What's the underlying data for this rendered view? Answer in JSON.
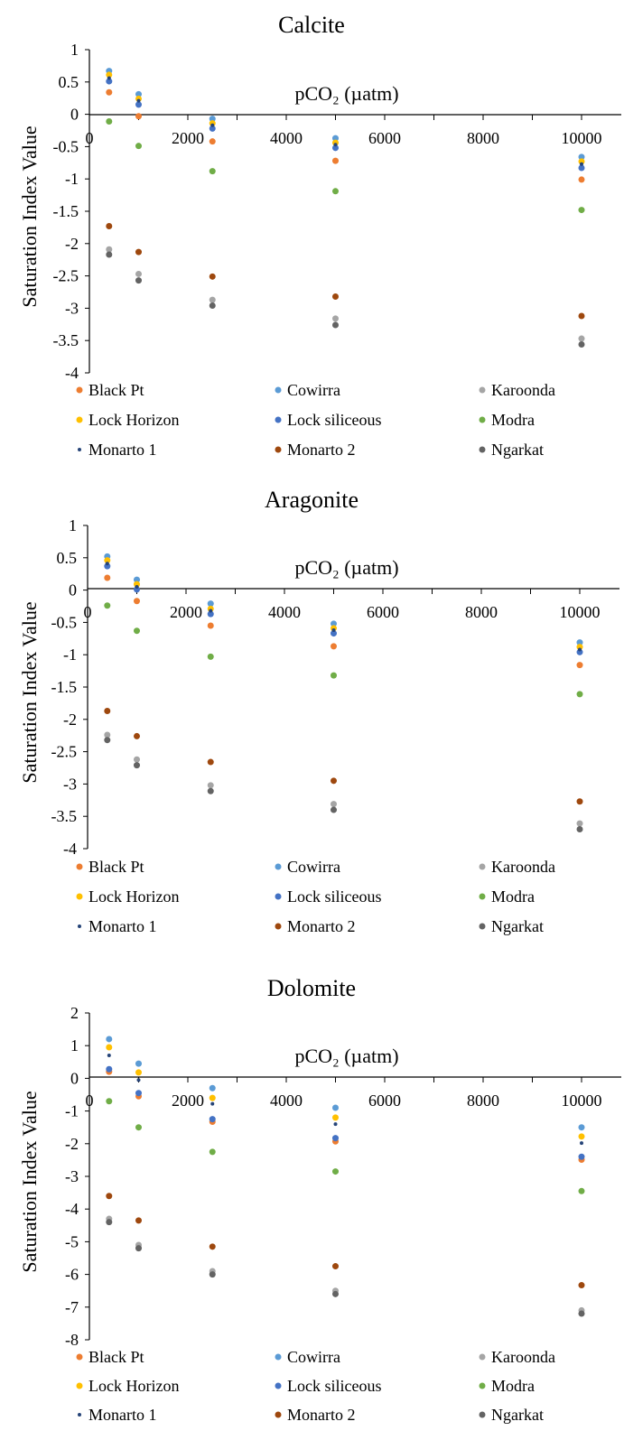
{
  "chart_data": [
    {
      "type": "scatter",
      "title": "Calcite",
      "xlabel": "pCO₂ (µatm)",
      "ylabel": "Saturation Index Value",
      "xlim": [
        0,
        11000
      ],
      "ylim": [
        -4,
        1
      ],
      "xticks": [
        0,
        2000,
        4000,
        6000,
        8000,
        10000
      ],
      "xtick_labels": [
        "0",
        "2000",
        "4000",
        "6000",
        "8000",
        "10000"
      ],
      "yticks": [
        1,
        0.5,
        0,
        -0.5,
        -1,
        -1.5,
        -2,
        -2.5,
        -3,
        -3.5,
        -4
      ],
      "ytick_labels": [
        "1",
        "0.5",
        "0",
        "-0.5",
        "-1",
        "-1.5",
        "-2",
        "-2.5",
        "-3",
        "-3.5",
        "-4"
      ],
      "grid": false,
      "legend_position": "bottom",
      "x": [
        400,
        1000,
        2500,
        5000,
        10000
      ],
      "series": [
        {
          "name": "Black Pt",
          "color": "#ED7D31",
          "values": [
            0.34,
            -0.03,
            -0.42,
            -0.72,
            -1.01
          ]
        },
        {
          "name": "Cowirra",
          "color": "#5B9BD5",
          "values": [
            0.67,
            0.31,
            -0.07,
            -0.37,
            -0.66
          ]
        },
        {
          "name": "Karoonda",
          "color": "#A5A5A5",
          "values": [
            -2.09,
            -2.47,
            -2.87,
            -3.16,
            -3.47
          ]
        },
        {
          "name": "Lock Horizon",
          "color": "#FFC000",
          "values": [
            0.61,
            0.24,
            -0.14,
            -0.44,
            -0.73
          ]
        },
        {
          "name": "Lock siliceous",
          "color": "#4472C4",
          "values": [
            0.51,
            0.15,
            -0.22,
            -0.52,
            -0.83
          ]
        },
        {
          "name": "Modra",
          "color": "#70AD47",
          "values": [
            -0.11,
            -0.49,
            -0.88,
            -1.19,
            -1.48
          ]
        },
        {
          "name": "Monarto 1",
          "color": "#264478",
          "values": [
            0.56,
            0.21,
            -0.17,
            -0.47,
            -0.77
          ]
        },
        {
          "name": "Monarto 2",
          "color": "#9E480E",
          "values": [
            -1.73,
            -2.13,
            -2.51,
            -2.82,
            -3.12
          ]
        },
        {
          "name": "Ngarkat",
          "color": "#636363",
          "values": [
            -2.17,
            -2.57,
            -2.96,
            -3.26,
            -3.56
          ]
        }
      ]
    },
    {
      "type": "scatter",
      "title": "Aragonite",
      "xlabel": "pCO₂ (µatm)",
      "ylabel": "Saturation Index Value",
      "xlim": [
        0,
        11000
      ],
      "ylim": [
        -4,
        1
      ],
      "xticks": [
        0,
        2000,
        4000,
        6000,
        8000,
        10000
      ],
      "xtick_labels": [
        "0",
        "2000",
        "4000",
        "6000",
        "8000",
        "10000"
      ],
      "yticks": [
        1,
        0.5,
        0,
        -0.5,
        -1,
        -1.5,
        -2,
        -2.5,
        -3,
        -3.5,
        -4
      ],
      "ytick_labels": [
        "1",
        "0.5",
        "0",
        "-0.5",
        "-1",
        "-1.5",
        "-2",
        "-2.5",
        "-3",
        "-3.5",
        "-4"
      ],
      "grid": false,
      "legend_position": "bottom",
      "x": [
        400,
        1000,
        2500,
        5000,
        10000
      ],
      "series": [
        {
          "name": "Black Pt",
          "color": "#ED7D31",
          "values": [
            0.19,
            -0.17,
            -0.55,
            -0.87,
            -1.16
          ]
        },
        {
          "name": "Cowirra",
          "color": "#5B9BD5",
          "values": [
            0.52,
            0.16,
            -0.21,
            -0.52,
            -0.81
          ]
        },
        {
          "name": "Karoonda",
          "color": "#A5A5A5",
          "values": [
            -2.24,
            -2.62,
            -3.02,
            -3.31,
            -3.61
          ]
        },
        {
          "name": "Lock Horizon",
          "color": "#FFC000",
          "values": [
            0.46,
            0.09,
            -0.29,
            -0.59,
            -0.88
          ]
        },
        {
          "name": "Lock siliceous",
          "color": "#4472C4",
          "values": [
            0.37,
            0.01,
            -0.37,
            -0.67,
            -0.96
          ]
        },
        {
          "name": "Modra",
          "color": "#70AD47",
          "values": [
            -0.24,
            -0.63,
            -1.03,
            -1.32,
            -1.61
          ]
        },
        {
          "name": "Monarto 1",
          "color": "#264478",
          "values": [
            0.41,
            0.05,
            -0.32,
            -0.62,
            -0.92
          ]
        },
        {
          "name": "Monarto 2",
          "color": "#9E480E",
          "values": [
            -1.87,
            -2.26,
            -2.66,
            -2.95,
            -3.27
          ]
        },
        {
          "name": "Ngarkat",
          "color": "#636363",
          "values": [
            -2.32,
            -2.71,
            -3.11,
            -3.4,
            -3.7
          ]
        }
      ]
    },
    {
      "type": "scatter",
      "title": "Dolomite",
      "xlabel": "pCO₂ (µatm)",
      "ylabel": "Saturation Index Value",
      "xlim": [
        0,
        11000
      ],
      "ylim": [
        -8,
        2
      ],
      "xticks": [
        0,
        2000,
        4000,
        6000,
        8000,
        10000
      ],
      "xtick_labels": [
        "0",
        "2000",
        "4000",
        "6000",
        "8000",
        "10000"
      ],
      "yticks": [
        2,
        1,
        0,
        -1,
        -2,
        -3,
        -4,
        -5,
        -6,
        -7,
        -8
      ],
      "ytick_labels": [
        "2",
        "1",
        "0",
        "-1",
        "-2",
        "-3",
        "-4",
        "-5",
        "-6",
        "-7",
        "-8"
      ],
      "grid": false,
      "legend_position": "bottom",
      "x": [
        400,
        1000,
        2500,
        5000,
        10000
      ],
      "series": [
        {
          "name": "Black Pt",
          "color": "#ED7D31",
          "values": [
            0.2,
            -0.55,
            -1.33,
            -1.93,
            -2.49
          ]
        },
        {
          "name": "Cowirra",
          "color": "#5B9BD5",
          "values": [
            1.2,
            0.45,
            -0.3,
            -0.9,
            -1.5
          ]
        },
        {
          "name": "Karoonda",
          "color": "#A5A5A5",
          "values": [
            -4.3,
            -5.1,
            -5.9,
            -6.5,
            -7.1
          ]
        },
        {
          "name": "Lock Horizon",
          "color": "#FFC000",
          "values": [
            0.95,
            0.18,
            -0.6,
            -1.2,
            -1.78
          ]
        },
        {
          "name": "Lock siliceous",
          "color": "#4472C4",
          "values": [
            0.28,
            -0.45,
            -1.25,
            -1.83,
            -2.4
          ]
        },
        {
          "name": "Modra",
          "color": "#70AD47",
          "values": [
            -0.7,
            -1.5,
            -2.25,
            -2.85,
            -3.45
          ]
        },
        {
          "name": "Monarto 1",
          "color": "#264478",
          "values": [
            0.7,
            -0.05,
            -0.78,
            -1.4,
            -1.98
          ]
        },
        {
          "name": "Monarto 2",
          "color": "#9E480E",
          "values": [
            -3.6,
            -4.35,
            -5.15,
            -5.75,
            -6.33
          ]
        },
        {
          "name": "Ngarkat",
          "color": "#636363",
          "values": [
            -4.4,
            -5.2,
            -6.0,
            -6.6,
            -7.2
          ]
        }
      ]
    }
  ]
}
